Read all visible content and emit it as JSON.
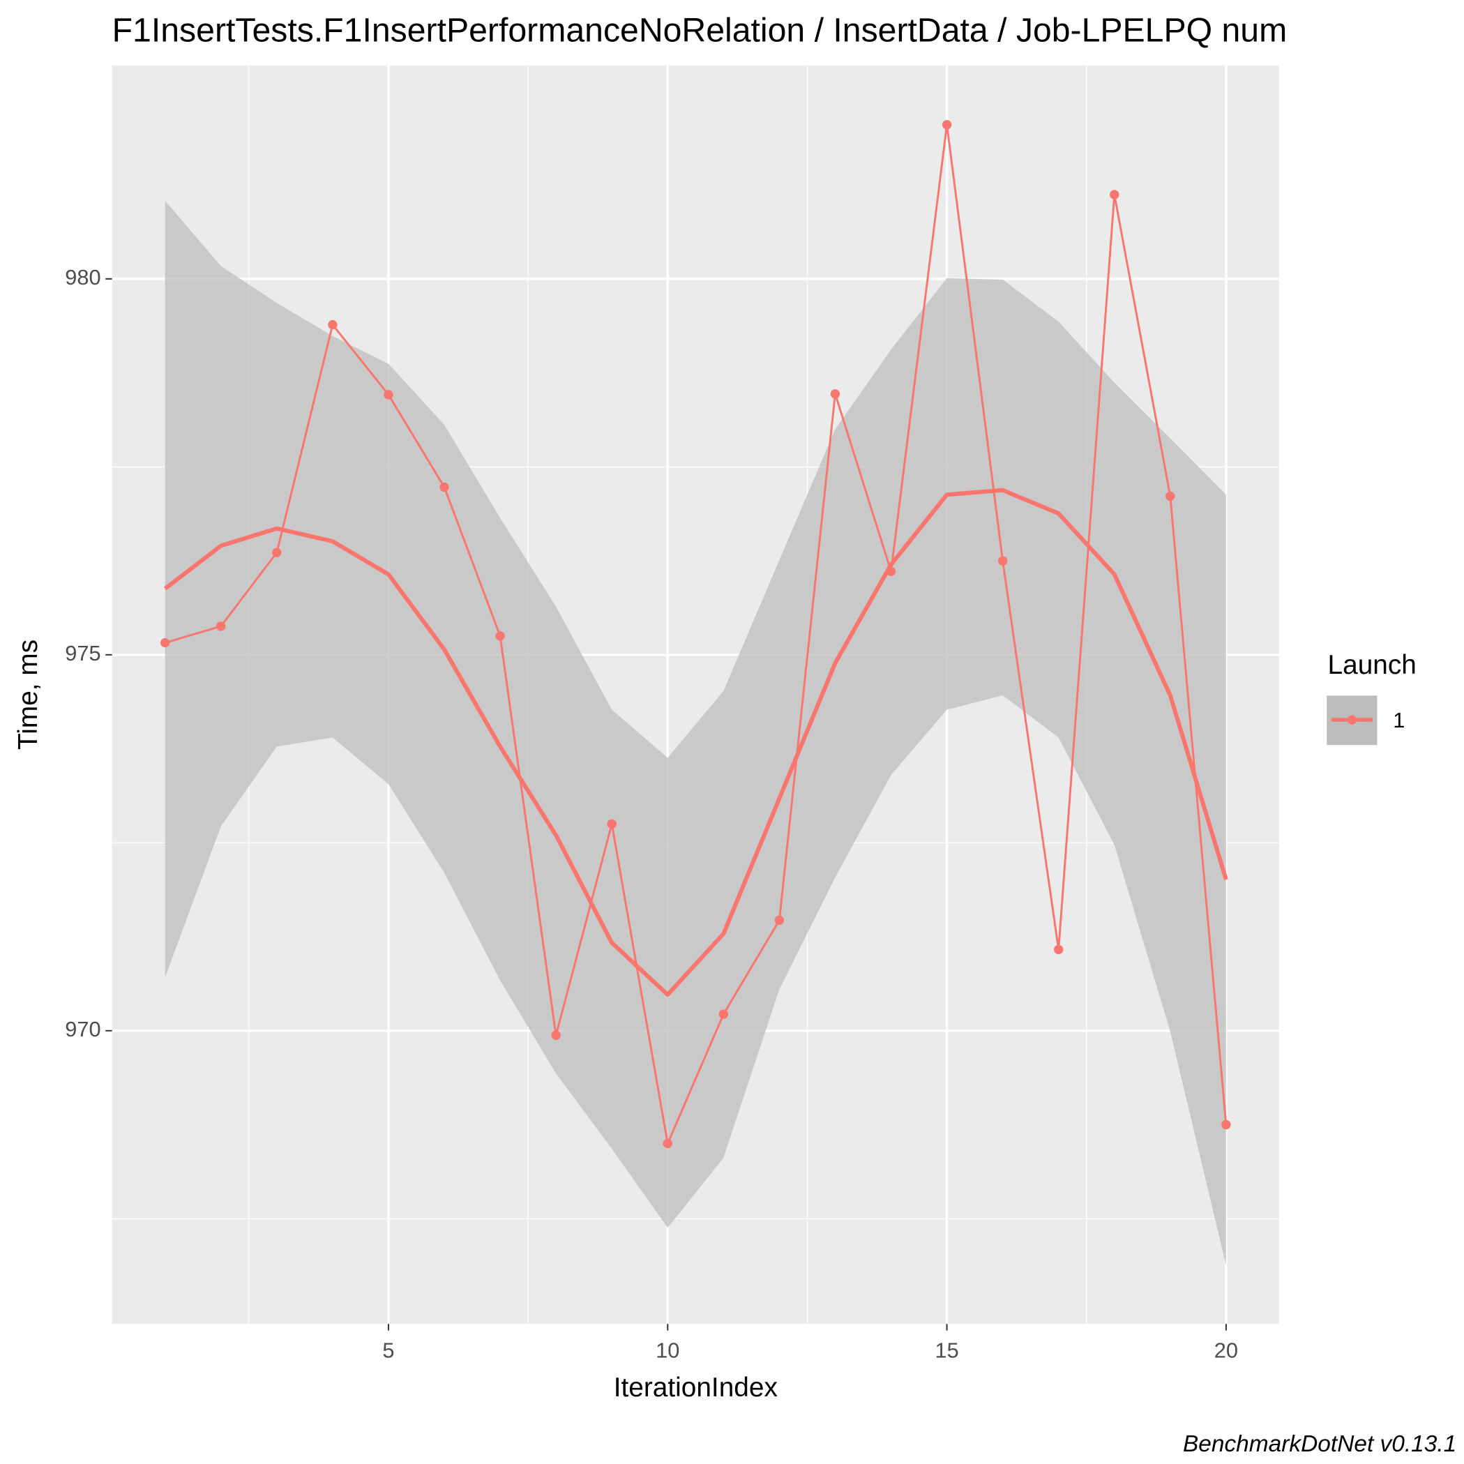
{
  "chart_data": {
    "type": "line",
    "title": "F1InsertTests.F1InsertPerformanceNoRelation / InsertData / Job-LPELPQ num",
    "x_label": "IterationIndex",
    "y_label": "Time, ms",
    "caption": "BenchmarkDotNet v0.13.1",
    "legend_title": "Launch",
    "x": [
      1,
      2,
      3,
      4,
      5,
      6,
      7,
      8,
      9,
      10,
      11,
      12,
      13,
      14,
      15,
      16,
      17,
      18,
      19,
      20
    ],
    "series": [
      {
        "name": "1",
        "color": "#f8766d",
        "values": [
          975.16,
          975.38,
          976.36,
          979.39,
          978.46,
          977.23,
          975.25,
          969.94,
          972.75,
          968.5,
          970.22,
          971.47,
          978.47,
          976.11,
          982.05,
          976.25,
          971.08,
          981.12,
          977.11,
          968.75
        ]
      }
    ],
    "smooth": {
      "color": "#f8766d",
      "fill": "#bdbdbd",
      "values": [
        975.88,
        976.45,
        976.68,
        976.51,
        976.07,
        975.07,
        973.78,
        972.6,
        971.17,
        970.48,
        971.29,
        973.09,
        974.89,
        976.2,
        977.13,
        977.19,
        976.88,
        976.07,
        974.46,
        972.01
      ],
      "ymin": [
        970.71,
        972.72,
        973.78,
        973.9,
        973.28,
        972.1,
        970.67,
        969.43,
        968.43,
        967.38,
        968.31,
        970.55,
        972.04,
        973.4,
        974.27,
        974.46,
        973.9,
        972.47,
        969.99,
        966.88
      ],
      "ymax": [
        981.04,
        980.17,
        979.68,
        979.24,
        978.87,
        978.06,
        976.82,
        975.64,
        974.27,
        973.63,
        974.52,
        976.26,
        978.0,
        979.06,
        980.01,
        979.99,
        979.43,
        978.62,
        977.88,
        977.13
      ]
    },
    "xlim": [
      0.05,
      20.95
    ],
    "ylim": [
      966.1,
      982.84
    ],
    "xticks": [
      5,
      10,
      15,
      20
    ],
    "yticks": [
      970,
      975,
      980
    ],
    "xminor": [
      2.5,
      7.5,
      12.5,
      17.5
    ],
    "yminor": [
      967.5,
      972.5,
      977.5
    ],
    "grid": true
  }
}
